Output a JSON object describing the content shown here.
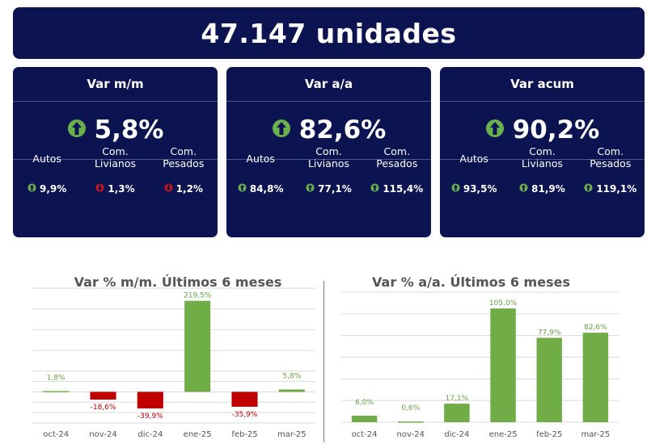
{
  "header": {
    "title": "47.147 unidades"
  },
  "colors": {
    "navy": "#0b1450",
    "up": "#6ab04c",
    "down": "#c0181c",
    "bar_pos": "#70ad47",
    "bar_neg": "#c00000",
    "label_pos": "#6a9e3f",
    "label_neg": "#c00000"
  },
  "cards": [
    {
      "title": "Var m/m",
      "value": "5,8%",
      "trend": "up",
      "items": [
        {
          "label": "Autos",
          "value": "9,9%",
          "trend": "up"
        },
        {
          "label": "Com.\nLivianos",
          "value": "1,3%",
          "trend": "down"
        },
        {
          "label": "Com.\nPesados",
          "value": "1,2%",
          "trend": "down"
        }
      ]
    },
    {
      "title": "Var a/a",
      "value": "82,6%",
      "trend": "up",
      "items": [
        {
          "label": "Autos",
          "value": "84,8%",
          "trend": "up"
        },
        {
          "label": "Com.\nLivianos",
          "value": "77,1%",
          "trend": "up"
        },
        {
          "label": "Com.\nPesados",
          "value": "115,4%",
          "trend": "up"
        }
      ]
    },
    {
      "title": "Var acum",
      "value": "90,2%",
      "trend": "up",
      "items": [
        {
          "label": "Autos",
          "value": "93,5%",
          "trend": "up"
        },
        {
          "label": "Com.\nLivianos",
          "value": "81,9%",
          "trend": "up"
        },
        {
          "label": "Com.\nPesados",
          "value": "119,1%",
          "trend": "up"
        }
      ]
    }
  ],
  "chart_data": [
    {
      "type": "bar",
      "title": "Var % m/m. Últimos 6 meses",
      "categories": [
        "oct-24",
        "nov-24",
        "dic-24",
        "ene-25",
        "feb-25",
        "mar-25"
      ],
      "values": [
        1.8,
        -18.6,
        -39.9,
        219.5,
        -35.9,
        5.8
      ],
      "labels": [
        "1,8%",
        "-18,6%",
        "-39,9%",
        "219,5%",
        "-35,9%",
        "5,8%"
      ],
      "ylim": [
        -75,
        250
      ],
      "grid": true
    },
    {
      "type": "bar",
      "title": "Var % a/a. Últimos 6 meses",
      "categories": [
        "oct-24",
        "nov-24",
        "dic-24",
        "ene-25",
        "feb-25",
        "mar-25"
      ],
      "values": [
        6.0,
        0.6,
        17.1,
        105.0,
        77.9,
        82.6
      ],
      "labels": [
        "6,0%",
        "0,6%",
        "17,1%",
        "105,0%",
        "77,9%",
        "82,6%"
      ],
      "ylim": [
        0,
        120
      ],
      "grid": true
    }
  ]
}
